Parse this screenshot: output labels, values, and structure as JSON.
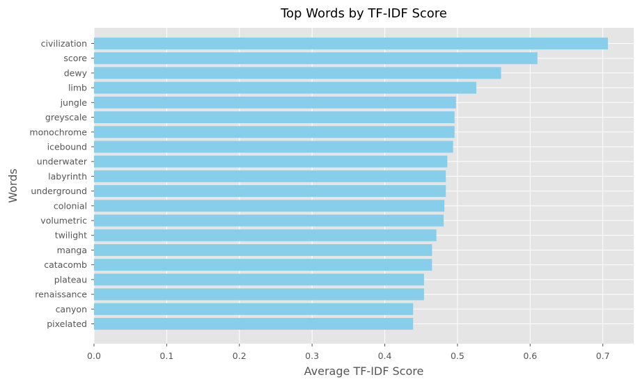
{
  "chart_data": {
    "type": "bar",
    "orientation": "horizontal",
    "title": "Top Words by TF-IDF Score",
    "xlabel": "Average TF-IDF Score",
    "ylabel": "Words",
    "xlim": [
      0,
      0.7425
    ],
    "x_ticks": [
      "0.0",
      "0.1",
      "0.2",
      "0.3",
      "0.4",
      "0.5",
      "0.6",
      "0.7"
    ],
    "grid": true,
    "bar_color": "#87CEEB",
    "background_color": "#E5E5E5",
    "categories": [
      "civilization",
      "score",
      "dewy",
      "limb",
      "jungle",
      "greyscale",
      "monochrome",
      "icebound",
      "underwater",
      "labyrinth",
      "underground",
      "colonial",
      "volumetric",
      "twilight",
      "manga",
      "catacomb",
      "plateau",
      "renaissance",
      "canyon",
      "pixelated"
    ],
    "values": [
      0.707,
      0.61,
      0.56,
      0.526,
      0.498,
      0.496,
      0.496,
      0.494,
      0.486,
      0.484,
      0.484,
      0.482,
      0.481,
      0.471,
      0.465,
      0.465,
      0.454,
      0.454,
      0.439,
      0.439
    ]
  }
}
